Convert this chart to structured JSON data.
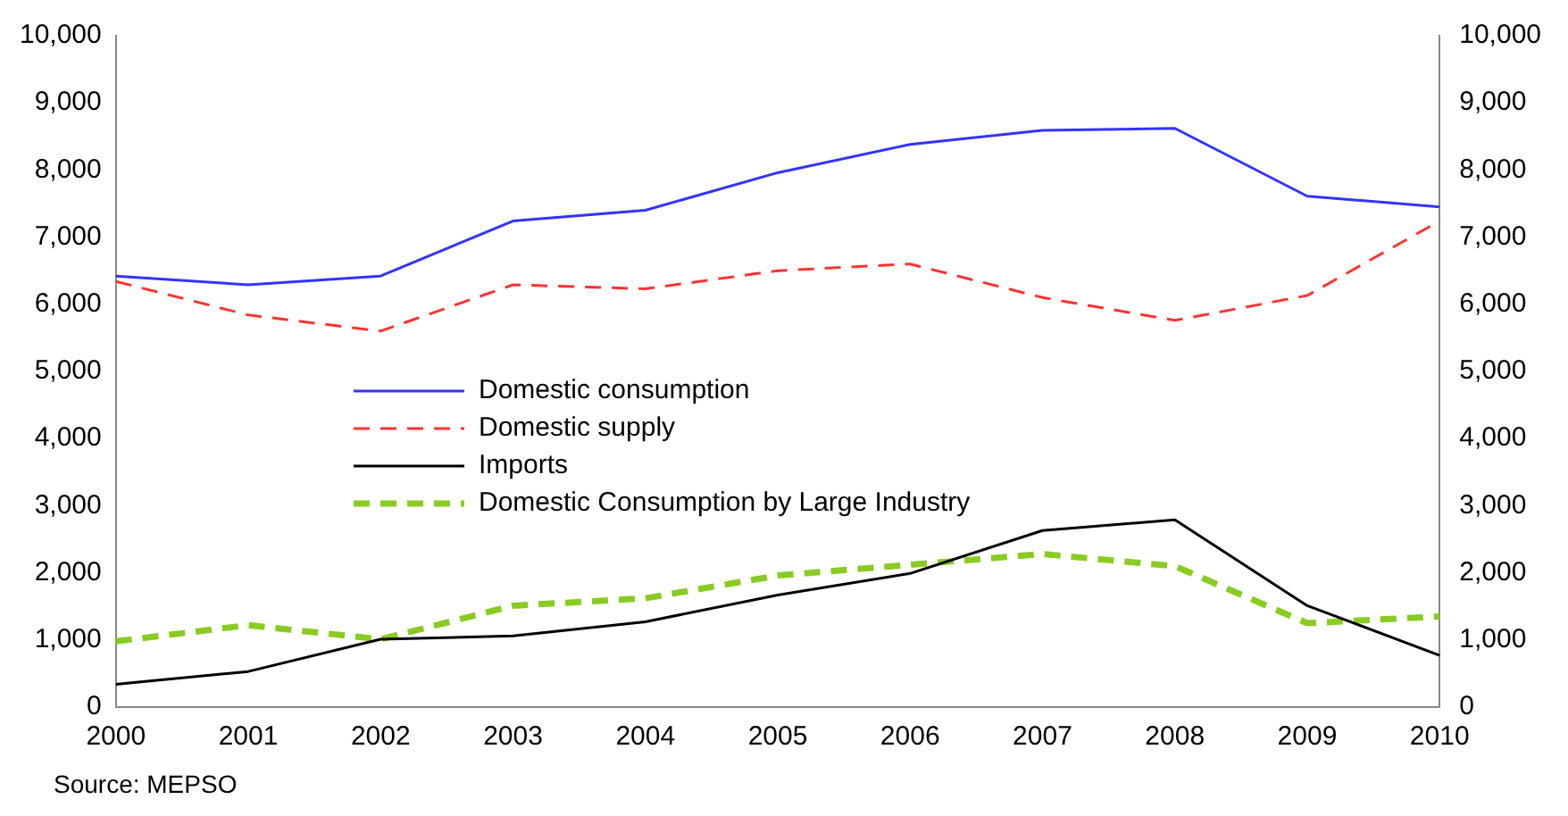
{
  "chart_data": {
    "type": "line",
    "categories": [
      "2000",
      "2001",
      "2002",
      "2003",
      "2004",
      "2005",
      "2006",
      "2007",
      "2008",
      "2009",
      "2010"
    ],
    "series": [
      {
        "name": "Domestic consumption",
        "color": "#3333ff",
        "line_style": "solid",
        "values": [
          6420,
          6290,
          6420,
          7240,
          7400,
          7960,
          8380,
          8590,
          8620,
          7610,
          7450
        ]
      },
      {
        "name": "Domestic supply",
        "color": "#ff3333",
        "line_style": "dashed",
        "values": [
          6340,
          5840,
          5600,
          6290,
          6230,
          6500,
          6600,
          6100,
          5760,
          6130,
          7240
        ]
      },
      {
        "name": "Imports",
        "color": "#000000",
        "line_style": "solid",
        "values": [
          340,
          530,
          1010,
          1060,
          1270,
          1670,
          1990,
          2630,
          2790,
          1510,
          770
        ]
      },
      {
        "name": "Domestic Consumption by Large Industry",
        "color": "#88cc22",
        "line_style": "dashed",
        "values": [
          980,
          1220,
          1010,
          1510,
          1620,
          1960,
          2120,
          2280,
          2100,
          1250,
          1350
        ]
      }
    ],
    "ylim": [
      0,
      10000
    ],
    "yticks": [
      0,
      {
        "value": 1000,
        "label": "1,000"
      },
      {
        "value": 2000,
        "label": "2,000"
      },
      {
        "value": 3000,
        "label": "3,000"
      },
      {
        "value": 4000,
        "label": "4,000"
      },
      {
        "value": 5000,
        "label": "5,000"
      },
      {
        "value": 6000,
        "label": "6,000"
      },
      {
        "value": 7000,
        "label": "7,000"
      },
      {
        "value": 8000,
        "label": "8,000"
      },
      {
        "value": 9000,
        "label": "9,000"
      },
      {
        "value": 10000,
        "label": "10,000"
      }
    ],
    "y2lim": [
      0,
      10000
    ],
    "y2ticks": [
      0,
      {
        "value": 1000,
        "label": "1,000"
      },
      {
        "value": 2000,
        "label": "2,000"
      },
      {
        "value": 3000,
        "label": "3,000"
      },
      {
        "value": 4000,
        "label": "4,000"
      },
      {
        "value": 5000,
        "label": "5,000"
      },
      {
        "value": 6000,
        "label": "6,000"
      },
      {
        "value": 7000,
        "label": "7,000"
      },
      {
        "value": 8000,
        "label": "8,000"
      },
      {
        "value": 9000,
        "label": "9,000"
      },
      {
        "value": 10000,
        "label": "10,000"
      }
    ],
    "grid": false,
    "legend": "center left",
    "marker": "none",
    "annotations": [
      "Source: MEPSO"
    ]
  }
}
